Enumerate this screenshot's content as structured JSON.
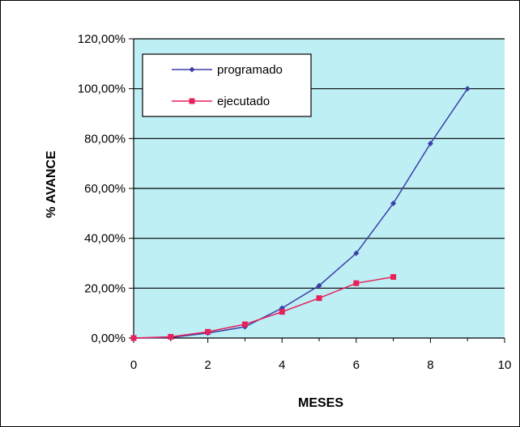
{
  "chart_data": {
    "type": "line",
    "title": "",
    "xlabel": "MESES",
    "ylabel": "% AVANCE",
    "xlim": [
      0,
      10
    ],
    "ylim": [
      0,
      1.2
    ],
    "x_ticks": [
      "0",
      "2",
      "4",
      "6",
      "8",
      "10"
    ],
    "y_ticks": [
      "0,00%",
      "20,00%",
      "40,00%",
      "60,00%",
      "80,00%",
      "100,00%",
      "120,00%"
    ],
    "grid": "horizontal",
    "plot_background": "#BDEFF5",
    "legend_position": "top-left",
    "series": [
      {
        "name": "programado",
        "color": "#3A3FA7",
        "marker": "diamond",
        "x": [
          0,
          1,
          2,
          3,
          4,
          5,
          6,
          7,
          8,
          9
        ],
        "y": [
          0.0,
          0.002,
          0.02,
          0.045,
          0.12,
          0.21,
          0.34,
          0.54,
          0.78,
          1.0
        ]
      },
      {
        "name": "ejecutado",
        "color": "#E8205A",
        "marker": "square",
        "x": [
          0,
          1,
          2,
          3,
          4,
          5,
          6,
          7
        ],
        "y": [
          0.0,
          0.005,
          0.025,
          0.055,
          0.105,
          0.16,
          0.22,
          0.245
        ]
      }
    ]
  }
}
